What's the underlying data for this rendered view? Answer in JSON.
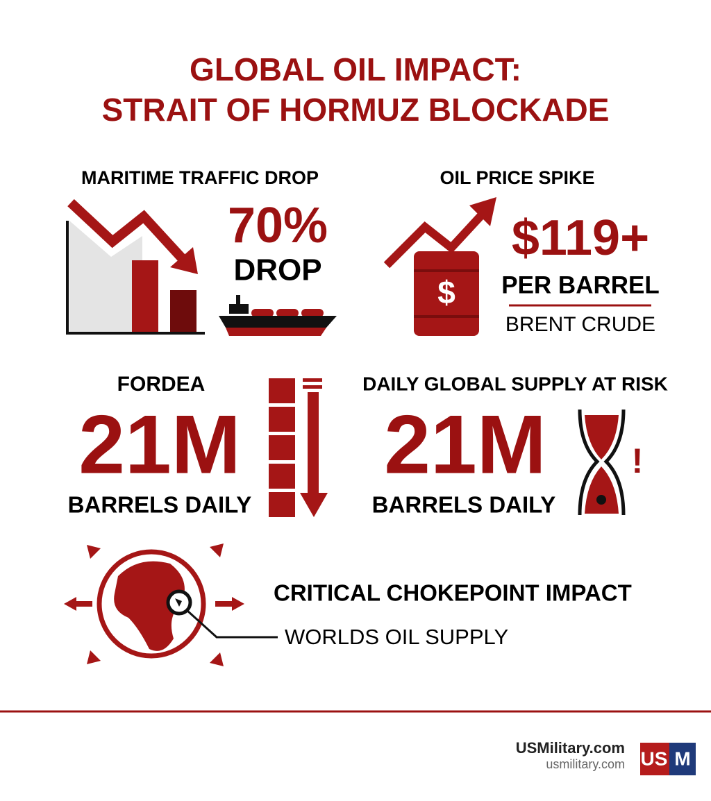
{
  "title": [
    "GLOBAL OIL IMPACT:",
    "STRAIT OF HORMUZ BLOCKADE"
  ],
  "panels": [
    {
      "heading": "MARITIME TRAFFIC DROP",
      "figure": "70%",
      "caption": "DROP"
    },
    {
      "heading": "OIL PRICE SPIKE",
      "figure": "$119+",
      "caption": "PER BARREL",
      "note": "BRENT CRUDE"
    },
    {
      "heading": "FORDEA",
      "figure": "21M",
      "caption": "BARRELS DAILY"
    },
    {
      "heading": "DAILY GLOBAL SUPPLY AT RISK",
      "figure": "21M",
      "caption": "BARRELS DAILY"
    }
  ],
  "chokepoint": {
    "heading": "CRITICAL CHOKEPOINT IMPACT",
    "label": "WORLDS OIL SUPPLY"
  },
  "footer": {
    "brand": "USMilitary.com",
    "url": "usmilitary.com",
    "logo_left": "US",
    "logo_right": "M"
  }
}
